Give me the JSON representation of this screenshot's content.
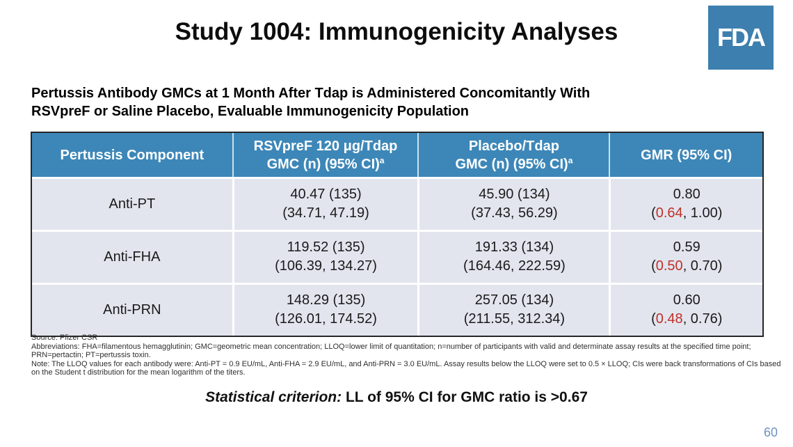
{
  "slide": {
    "title": "Study 1004: Immunogenicity Analyses",
    "logo_text": "FDA",
    "page_number": "60"
  },
  "subtitle": {
    "line1": "Pertussis Antibody GMCs at 1 Month After Tdap is Administered Concomitantly With",
    "line2": "RSVpreF or Saline Placebo, Evaluable Immunogenicity Population"
  },
  "table": {
    "headers": {
      "component": "Pertussis Component",
      "rsvpref_line1": "RSVpreF 120 μg/Tdap",
      "rsvpref_line2": "GMC (n) (95% CI)",
      "rsvpref_sup": "a",
      "placebo_line1": "Placebo/Tdap",
      "placebo_line2": "GMC (n) (95% CI)",
      "placebo_sup": "a",
      "gmr": "GMR (95% CI)"
    },
    "rows": [
      {
        "component": "Anti-PT",
        "rsvpref_line1": "40.47 (135)",
        "rsvpref_line2": "(34.71, 47.19)",
        "placebo_line1": "45.90 (134)",
        "placebo_line2": "(37.43, 56.29)",
        "gmr_value": "0.80",
        "gmr_open": "(",
        "gmr_low": "0.64",
        "gmr_rest": ", 1.00)"
      },
      {
        "component": "Anti-FHA",
        "rsvpref_line1": "119.52 (135)",
        "rsvpref_line2": "(106.39, 134.27)",
        "placebo_line1": "191.33 (134)",
        "placebo_line2": "(164.46, 222.59)",
        "gmr_value": "0.59",
        "gmr_open": "(",
        "gmr_low": "0.50",
        "gmr_rest": ", 0.70)"
      },
      {
        "component": "Anti-PRN",
        "rsvpref_line1": "148.29 (135)",
        "rsvpref_line2": "(126.01, 174.52)",
        "placebo_line1": "257.05 (134)",
        "placebo_line2": "(211.55, 312.34)",
        "gmr_value": "0.60",
        "gmr_open": "(",
        "gmr_low": "0.48",
        "gmr_rest": ", 0.76)"
      }
    ]
  },
  "footnotes": {
    "source": "Source: Pfizer CSR",
    "abbreviations": "Abbreviations: FHA=filamentous hemagglutinin; GMC=geometric mean concentration; LLOQ=lower limit of quantitation; n=number of participants with valid and determinate assay results at the specified time point; PRN=pertactin; PT=pertussis toxin.",
    "note": "Note: The LLOQ values for each antibody were: Anti-PT = 0.9 EU/mL, Anti-FHA = 2.9 EU/mL, and Anti-PRN = 3.0 EU/mL. Assay results below the LLOQ were set to 0.5 × LLOQ; CIs were back transformations of CIs based on the Student t distribution for the mean logarithm of the titers."
  },
  "criterion": {
    "label": "Statistical criterion:",
    "text": " LL of 95% CI for GMC ratio is >0.67"
  },
  "colors": {
    "header_blue": "#3d87b8",
    "row_bg": "#e2e5ee",
    "highlight_red": "#c03028",
    "logo_blue": "#3d7fae",
    "page_number_blue": "#6f92bd",
    "table_border": "#262626"
  }
}
